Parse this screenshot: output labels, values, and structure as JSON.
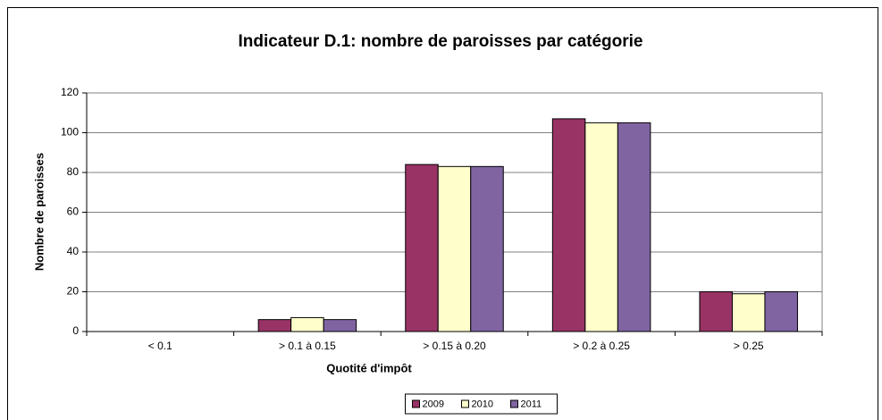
{
  "chart_data": {
    "type": "bar",
    "title": "Indicateur D.1: nombre de paroisses par catégorie",
    "x_label": "Quotité d'impôt",
    "y_label": "Nombre de paroisses",
    "categories": [
      "< 0.1",
      "> 0.1 à 0.15",
      "> 0.15 à 0.20",
      "> 0.2 à 0.25",
      "> 0.25"
    ],
    "series": [
      {
        "name": "2009",
        "color": "#993366",
        "values": [
          0,
          6,
          84,
          107,
          20
        ]
      },
      {
        "name": "2010",
        "color": "#FFFFCC",
        "values": [
          0,
          7,
          83,
          105,
          19
        ]
      },
      {
        "name": "2011",
        "color": "#8064A2",
        "values": [
          0,
          6,
          83,
          105,
          20
        ]
      }
    ],
    "ylim": [
      0,
      120
    ],
    "yticks": [
      0,
      20,
      40,
      60,
      80,
      100,
      120
    ],
    "grid": true,
    "legend": "bottom"
  }
}
